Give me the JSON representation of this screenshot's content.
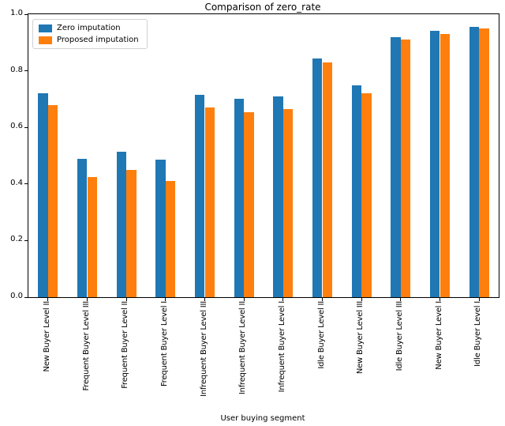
{
  "chart_data": {
    "type": "bar",
    "title": "Comparison of zero_rate",
    "xlabel": "User buying segment",
    "ylabel": "",
    "ylim": [
      0.0,
      1.0
    ],
    "yticks": [
      "0.0",
      "0.2",
      "0.4",
      "0.6",
      "0.8",
      "1.0"
    ],
    "grid": false,
    "legend_position": "upper left",
    "categories": [
      "New Buyer Level II",
      "Frequent Buyer Level III",
      "Frequent Buyer Level II",
      "Frequent Buyer Level I",
      "Infrequent Buyer Level III",
      "Infrequent Buyer Level II",
      "Infrequent Buyer Level I",
      "Idle Buyer Level II",
      "New Buyer Level III",
      "Idle Buyer Level III",
      "New Buyer Level I",
      "Idle Buyer Level I"
    ],
    "series": [
      {
        "name": "Zero imputation",
        "color": "#1f77b4",
        "values": [
          0.72,
          0.49,
          0.515,
          0.485,
          0.715,
          0.7,
          0.71,
          0.845,
          0.75,
          0.92,
          0.94,
          0.955
        ]
      },
      {
        "name": "Proposed imputation",
        "color": "#ff7f0e",
        "values": [
          0.68,
          0.425,
          0.45,
          0.41,
          0.67,
          0.655,
          0.665,
          0.83,
          0.72,
          0.91,
          0.93,
          0.95
        ]
      }
    ]
  }
}
